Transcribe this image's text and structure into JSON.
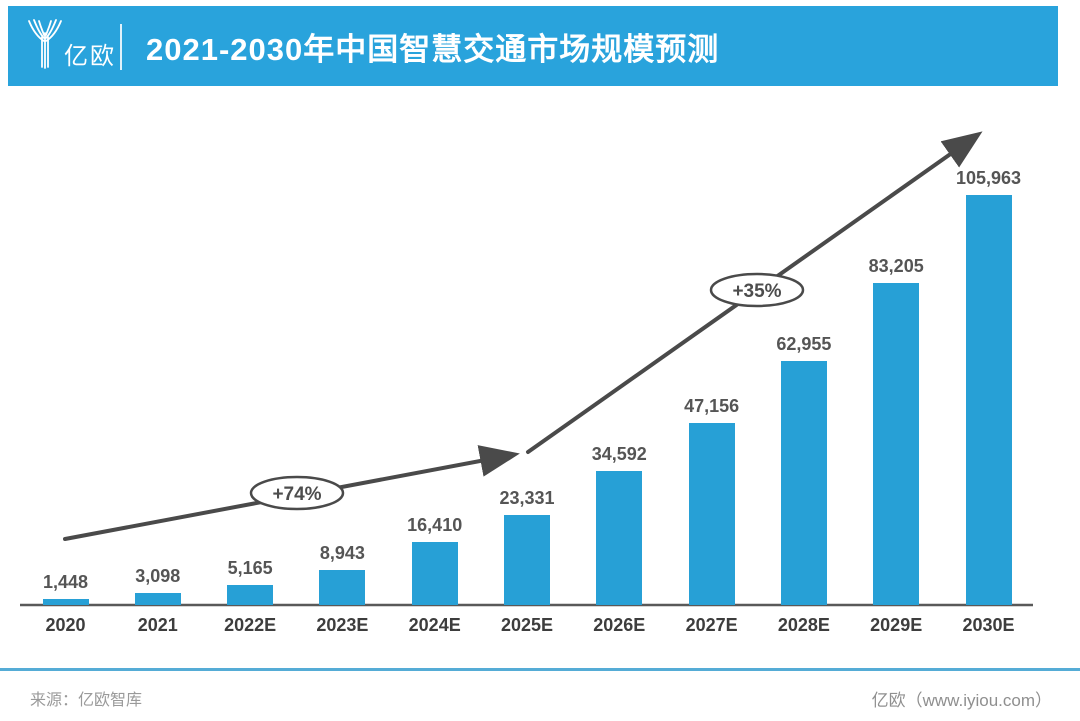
{
  "header": {
    "logo_text": "亿欧",
    "title": "2021-2030年中国智慧交通市场规模预测",
    "banner_color": "#29A3DC"
  },
  "chart_data": {
    "type": "bar",
    "title": "2021-2030年中国智慧交通市场规模预测",
    "categories": [
      "2020",
      "2021",
      "2022E",
      "2023E",
      "2024E",
      "2025E",
      "2026E",
      "2027E",
      "2028E",
      "2029E",
      "2030E"
    ],
    "values": [
      1448,
      3098,
      5165,
      8943,
      16410,
      23331,
      34592,
      47156,
      62955,
      83205,
      105963
    ],
    "value_labels": [
      "1,448",
      "3,098",
      "5,165",
      "8,943",
      "16,410",
      "23,331",
      "34,592",
      "47,156",
      "62,955",
      "83,205",
      "105,963"
    ],
    "annotations": [
      {
        "label": "+74%"
      },
      {
        "label": "+35%"
      }
    ],
    "bar_color": "#27A0D6",
    "arrow_color": "#4a4a4a",
    "axis_color": "#595959",
    "ylim": [
      0,
      110000
    ],
    "grid": false,
    "legend": null
  },
  "footer": {
    "source": "来源：亿欧智库",
    "site": "亿欧（www.iyiou.com）",
    "divider_color": "#55ACD6"
  }
}
